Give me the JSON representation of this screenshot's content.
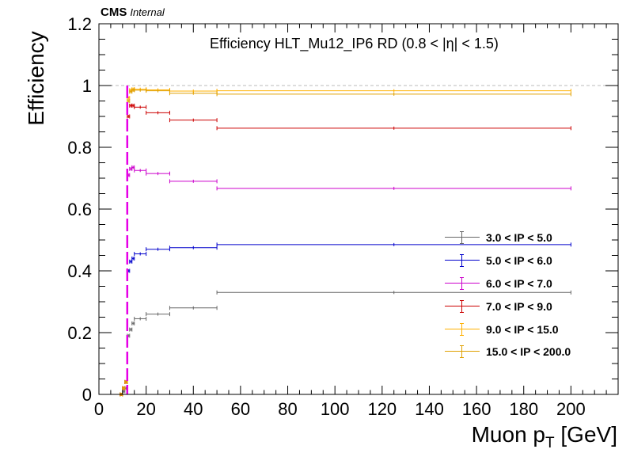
{
  "header": {
    "experiment": "CMS",
    "status": "Internal",
    "plot_title": "Efficiency HLT_Mu12_IP6 RD (0.8 < |η| < 1.5)"
  },
  "axes": {
    "ylabel": "Efficiency",
    "xlabel_main": "Muon p",
    "xlabel_sub": "T",
    "xlabel_unit": " [GeV]"
  },
  "chart_data": {
    "type": "scatter",
    "title": "Efficiency HLT_Mu12_IP6 RD (0.8 < |η| < 1.5)",
    "xlabel": "Muon pT [GeV]",
    "ylabel": "Efficiency",
    "xlim": [
      0,
      220
    ],
    "ylim": [
      0,
      1.2
    ],
    "xticks": [
      0,
      20,
      40,
      60,
      80,
      100,
      120,
      140,
      160,
      180,
      200
    ],
    "yticks": [
      0,
      0.2,
      0.4,
      0.6,
      0.8,
      1,
      1.2
    ],
    "xtick_labels": [
      "0",
      "20",
      "40",
      "60",
      "80",
      "100",
      "120",
      "140",
      "160",
      "180",
      "200"
    ],
    "ytick_labels": [
      "0",
      "0.2",
      "0.4",
      "0.6",
      "0.8",
      "1",
      "1.2"
    ],
    "reference_line_y": 1.0,
    "threshold_line_x": 12,
    "legend_position": "right",
    "bins": [
      [
        9,
        10
      ],
      [
        10,
        11
      ],
      [
        11,
        12
      ],
      [
        12,
        13
      ],
      [
        13,
        14
      ],
      [
        14,
        15
      ],
      [
        15,
        20
      ],
      [
        20,
        30
      ],
      [
        30,
        50
      ],
      [
        50,
        200
      ]
    ],
    "series": [
      {
        "name": "3.0 < IP < 5.0",
        "color": "#666666",
        "values": [
          0.0,
          0.01,
          0.02,
          0.19,
          0.21,
          0.23,
          0.245,
          0.26,
          0.28,
          0.33
        ]
      },
      {
        "name": "5.0 < IP < 6.0",
        "color": "#0000cc",
        "values": [
          0.0,
          0.02,
          0.04,
          0.4,
          0.43,
          0.44,
          0.455,
          0.47,
          0.475,
          0.485
        ]
      },
      {
        "name": "6.0 < IP < 7.0",
        "color": "#cc00cc",
        "values": [
          0.0,
          0.02,
          0.04,
          0.71,
          0.73,
          0.735,
          0.725,
          0.715,
          0.69,
          0.667
        ]
      },
      {
        "name": "7.0 < IP < 9.0",
        "color": "#cc0000",
        "values": [
          0.0,
          0.02,
          0.04,
          0.9,
          0.935,
          0.935,
          0.93,
          0.912,
          0.888,
          0.862
        ]
      },
      {
        "name": "9.0 < IP < 15.0",
        "color": "#ffb000",
        "values": [
          0.0,
          0.02,
          0.04,
          0.96,
          0.985,
          0.988,
          0.988,
          0.986,
          0.982,
          0.983
        ]
      },
      {
        "name": "15.0 < IP < 200.0",
        "color": "#e0a000",
        "values": [
          0.0,
          0.02,
          0.04,
          0.95,
          0.98,
          0.985,
          0.985,
          0.983,
          0.975,
          0.972
        ]
      }
    ]
  }
}
